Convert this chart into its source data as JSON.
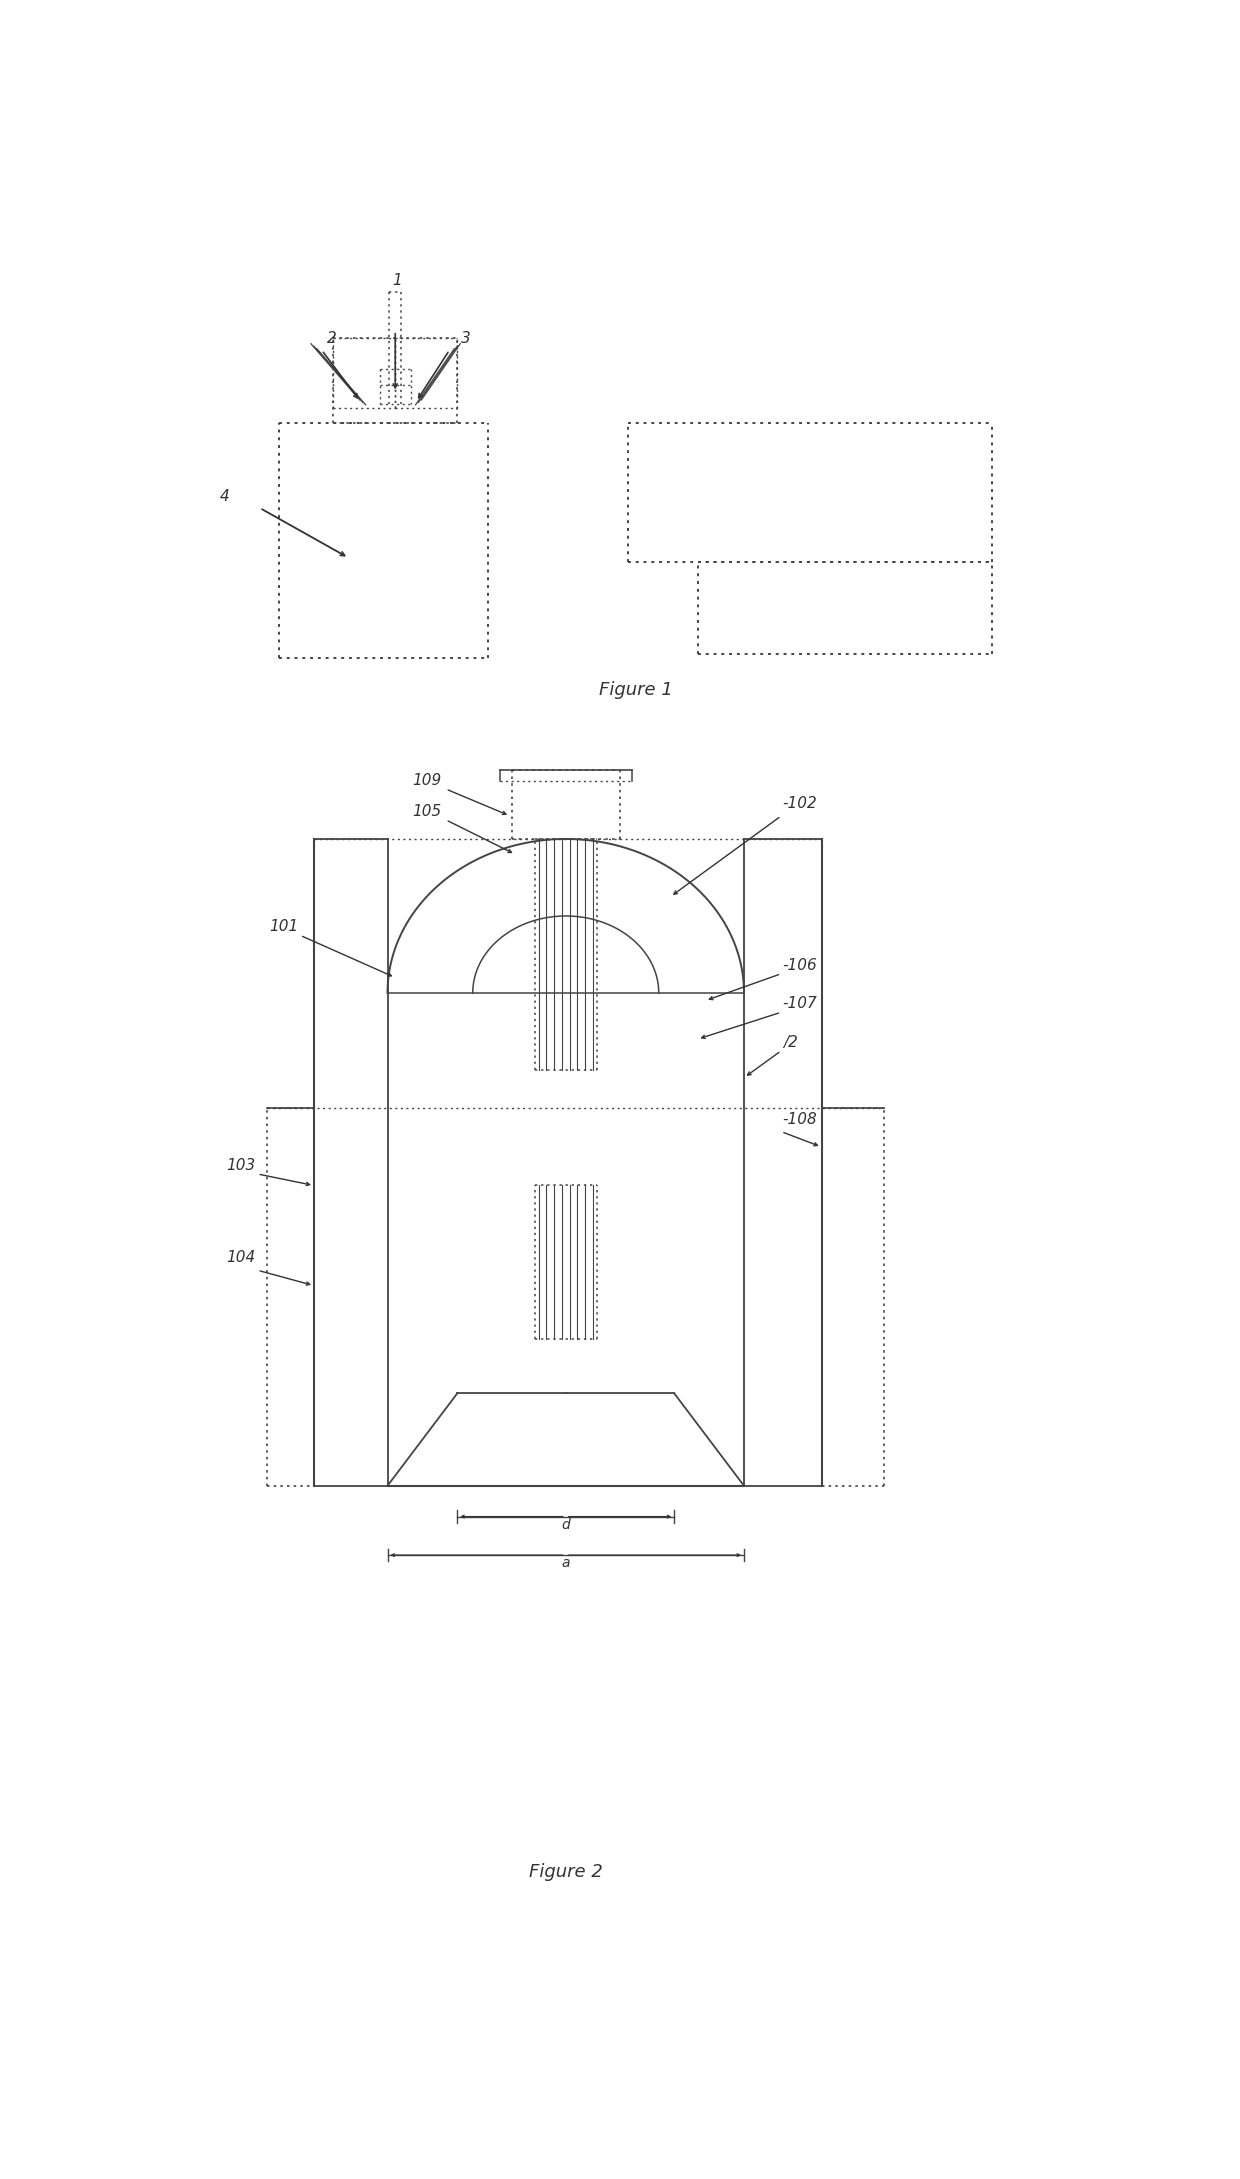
{
  "bg_color": "#ffffff",
  "line_color": "#444444",
  "text_color": "#333333",
  "fig_width": 12.4,
  "fig_height": 21.79,
  "figure1_caption": "Figure 1",
  "figure2_caption": "Figure 2"
}
